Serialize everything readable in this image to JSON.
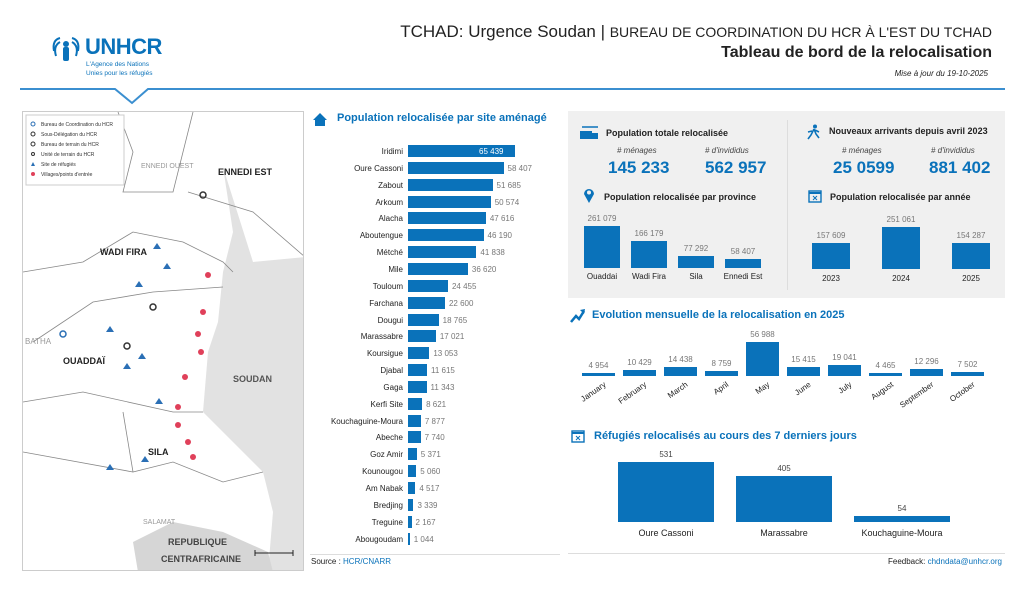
{
  "header": {
    "title": "TCHAD: Urgence Soudan",
    "title_sep": "|",
    "office": "BUREAU DE COORDINATION DU HCR À L'EST DU TCHAD",
    "subtitle": "Tableau de bord de la relocalisation",
    "updated": "Mise à jour du 19-10-2025"
  },
  "logo": {
    "name": "UNHCR",
    "line1": "L'Agence des Nations",
    "line2": "Unies pour les réfugiés"
  },
  "map": {
    "legend": [
      "Bureau de Coordination du HCR",
      "Sous-Délégation du HCR",
      "Bureau de terrain du HCR",
      "Unité de terrain du HCR",
      "Site de réfugiés",
      "Villages/points d'entrée"
    ],
    "labels": {
      "ennedi_ouest": "ENNEDI OUEST",
      "ennedi_est": "ENNEDI EST",
      "wadi_fira": "WADI FIRA",
      "ouaddai": "OUADDAÏ",
      "batha": "BATHA",
      "soudan": "SOUDAN",
      "sila": "SILA",
      "salamat": "SALAMAT",
      "rca1": "REPUBLIQUE",
      "rca2": "CENTRAFRICAINE"
    }
  },
  "sites": {
    "title": "Population relocalisée par site aménagé",
    "icon": "houses-icon",
    "items": [
      {
        "label": "Iridimi",
        "value": 65439,
        "text": "65 439"
      },
      {
        "label": "Oure Cassoni",
        "value": 58407,
        "text": "58 407"
      },
      {
        "label": "Zabout",
        "value": 51685,
        "text": "51 685"
      },
      {
        "label": "Arkoum",
        "value": 50574,
        "text": "50 574"
      },
      {
        "label": "Alacha",
        "value": 47616,
        "text": "47 616"
      },
      {
        "label": "Aboutengue",
        "value": 46190,
        "text": "46 190"
      },
      {
        "label": "Métché",
        "value": 41838,
        "text": "41 838"
      },
      {
        "label": "Mile",
        "value": 36620,
        "text": "36 620"
      },
      {
        "label": "Touloum",
        "value": 24455,
        "text": "24 455"
      },
      {
        "label": "Farchana",
        "value": 22600,
        "text": "22 600"
      },
      {
        "label": "Dougui",
        "value": 18765,
        "text": "18 765"
      },
      {
        "label": "Marassabre",
        "value": 17021,
        "text": "17 021"
      },
      {
        "label": "Koursigue",
        "value": 13053,
        "text": "13 053"
      },
      {
        "label": "Djabal",
        "value": 11615,
        "text": "11 615"
      },
      {
        "label": "Gaga",
        "value": 11343,
        "text": "11 343"
      },
      {
        "label": "Kerfi Site",
        "value": 8621,
        "text": "8 621"
      },
      {
        "label": "Kouchaguine-Moura",
        "value": 7877,
        "text": "7 877"
      },
      {
        "label": "Abeche",
        "value": 7740,
        "text": "7 740"
      },
      {
        "label": "Goz Amir",
        "value": 5371,
        "text": "5 371"
      },
      {
        "label": "Kounougou",
        "value": 5060,
        "text": "5 060"
      },
      {
        "label": "Am Nabak",
        "value": 4517,
        "text": "4 517"
      },
      {
        "label": "Bredjing",
        "value": 3339,
        "text": "3 339"
      },
      {
        "label": "Treguine",
        "value": 2167,
        "text": "2 167"
      },
      {
        "label": "Abougoudam",
        "value": 1044,
        "text": "1 044"
      }
    ]
  },
  "totals": {
    "title": "Population totale relocalisée",
    "menages_label": "# ménages",
    "menages": "145 233",
    "individus_label": "# d'invididus",
    "individus": "562 957"
  },
  "arrivals": {
    "title": "Nouveaux arrivants depuis avril 2023",
    "menages_label": "# ménages",
    "menages": "25 0599",
    "individus_label": "# d'invididus",
    "individus": "881 402"
  },
  "province": {
    "title": "Population relocalisée par province",
    "items": [
      {
        "label": "Ouaddai",
        "value": 261079,
        "text": "261 079"
      },
      {
        "label": "Wadi Fira",
        "value": 166179,
        "text": "166 179"
      },
      {
        "label": "Sila",
        "value": 77292,
        "text": "77 292"
      },
      {
        "label": "Ennedi Est",
        "value": 58407,
        "text": "58 407"
      }
    ]
  },
  "year": {
    "title": "Population relocalisée par année",
    "items": [
      {
        "label": "2023",
        "value": 157609,
        "text": "157 609"
      },
      {
        "label": "2024",
        "value": 251061,
        "text": "251 061"
      },
      {
        "label": "2025",
        "value": 154287,
        "text": "154 287"
      }
    ]
  },
  "monthly": {
    "title": "Evolution mensuelle de la relocalisation en 2025",
    "items": [
      {
        "label": "January",
        "value": 4954,
        "text": "4 954"
      },
      {
        "label": "February",
        "value": 10429,
        "text": "10 429"
      },
      {
        "label": "March",
        "value": 14438,
        "text": "14 438"
      },
      {
        "label": "April",
        "value": 8759,
        "text": "8 759"
      },
      {
        "label": "May",
        "value": 56988,
        "text": "56 988"
      },
      {
        "label": "June",
        "value": 15415,
        "text": "15 415"
      },
      {
        "label": "July",
        "value": 19041,
        "text": "19 041"
      },
      {
        "label": "August",
        "value": 4465,
        "text": "4 465"
      },
      {
        "label": "September",
        "value": 12296,
        "text": "12 296"
      },
      {
        "label": "October",
        "value": 7502,
        "text": "7 502"
      }
    ]
  },
  "week": {
    "title": "Réfugiés relocalisés au cours des 7 derniers jours",
    "items": [
      {
        "label": "Oure Cassoni",
        "value": 531,
        "text": "531"
      },
      {
        "label": "Marassabre",
        "value": 405,
        "text": "405"
      },
      {
        "label": "Kouchaguine-Moura",
        "value": 54,
        "text": "54"
      }
    ]
  },
  "footer": {
    "source_label": "Source :",
    "source": "HCR/CNARR",
    "feedback_label": "Feedback:",
    "feedback": "chdndata@unhcr.org"
  },
  "colors": {
    "accent": "#0a72ba",
    "panel": "#f0f0f0",
    "marker": "#e0405a"
  }
}
